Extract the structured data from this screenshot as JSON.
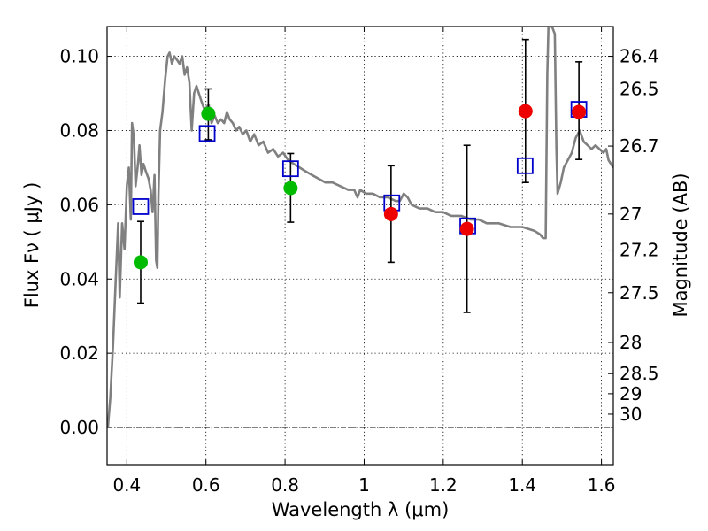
{
  "chart_data": {
    "type": "scatter",
    "xlabel": "Wavelength  λ (μm)",
    "ylabel": "Flux  Fν  ( μJy )",
    "y2label": "Magnitude (AB)",
    "xlim": [
      0.35,
      1.63
    ],
    "ylim": [
      -0.01,
      0.108
    ],
    "grid": true,
    "colors": {
      "green": "#00bb00",
      "red": "#ee0000",
      "model_box": "#0000cc",
      "sed": "#808080",
      "errorbar": "#000000"
    },
    "x_ticks": [
      {
        "value": 0.4,
        "label": "0.4"
      },
      {
        "value": 0.6,
        "label": "0.6"
      },
      {
        "value": 0.8,
        "label": "0.8"
      },
      {
        "value": 1.0,
        "label": "1"
      },
      {
        "value": 1.2,
        "label": "1.2"
      },
      {
        "value": 1.4,
        "label": "1.4"
      },
      {
        "value": 1.6,
        "label": "1.6"
      }
    ],
    "y_ticks": [
      {
        "value": 0.0,
        "label": "0.00"
      },
      {
        "value": 0.02,
        "label": "0.02"
      },
      {
        "value": 0.04,
        "label": "0.04"
      },
      {
        "value": 0.06,
        "label": "0.06"
      },
      {
        "value": 0.08,
        "label": "0.08"
      },
      {
        "value": 0.1,
        "label": "0.10"
      }
    ],
    "mag_ticks": [
      {
        "value": 0.1,
        "label": "26.4"
      },
      {
        "value": 0.0912,
        "label": "26.5"
      },
      {
        "value": 0.0758,
        "label": "26.7"
      },
      {
        "value": 0.0575,
        "label": "27"
      },
      {
        "value": 0.0478,
        "label": "27.2"
      },
      {
        "value": 0.0363,
        "label": "27.5"
      },
      {
        "value": 0.0229,
        "label": "28"
      },
      {
        "value": 0.0145,
        "label": "28.5"
      },
      {
        "value": 0.0091,
        "label": "29"
      },
      {
        "value": 0.0036,
        "label": "30"
      }
    ],
    "observed": [
      {
        "x": 0.435,
        "y": 0.0445,
        "yerr_low": 0.0335,
        "yerr_high": 0.0555,
        "color": "green"
      },
      {
        "x": 0.606,
        "y": 0.0845,
        "yerr_low": 0.0775,
        "yerr_high": 0.0912,
        "color": "green"
      },
      {
        "x": 0.814,
        "y": 0.0645,
        "yerr_low": 0.0553,
        "yerr_high": 0.0738,
        "color": "green"
      },
      {
        "x": 1.068,
        "y": 0.0575,
        "yerr_low": 0.0445,
        "yerr_high": 0.0705,
        "color": "red"
      },
      {
        "x": 1.26,
        "y": 0.0535,
        "yerr_low": 0.031,
        "yerr_high": 0.076,
        "color": "red"
      },
      {
        "x": 1.408,
        "y": 0.0852,
        "yerr_low": 0.066,
        "yerr_high": 0.1045,
        "color": "red"
      },
      {
        "x": 1.543,
        "y": 0.085,
        "yerr_low": 0.0722,
        "yerr_high": 0.0985,
        "color": "red"
      }
    ],
    "model_photometry": [
      {
        "x": 0.435,
        "y": 0.0595
      },
      {
        "x": 0.603,
        "y": 0.0792
      },
      {
        "x": 0.814,
        "y": 0.0697
      },
      {
        "x": 1.07,
        "y": 0.0605
      },
      {
        "x": 1.262,
        "y": 0.0543
      },
      {
        "x": 1.407,
        "y": 0.0705
      },
      {
        "x": 1.543,
        "y": 0.0857
      }
    ],
    "sed_curve": [
      [
        0.352,
        0.0
      ],
      [
        0.358,
        0.008
      ],
      [
        0.365,
        0.022
      ],
      [
        0.372,
        0.04
      ],
      [
        0.378,
        0.055
      ],
      [
        0.382,
        0.035
      ],
      [
        0.388,
        0.055
      ],
      [
        0.394,
        0.048
      ],
      [
        0.4,
        0.065
      ],
      [
        0.405,
        0.07
      ],
      [
        0.41,
        0.056
      ],
      [
        0.413,
        0.082
      ],
      [
        0.418,
        0.078
      ],
      [
        0.422,
        0.065
      ],
      [
        0.428,
        0.071
      ],
      [
        0.432,
        0.076
      ],
      [
        0.437,
        0.068
      ],
      [
        0.442,
        0.071
      ],
      [
        0.448,
        0.069
      ],
      [
        0.455,
        0.067
      ],
      [
        0.46,
        0.064
      ],
      [
        0.465,
        0.058
      ],
      [
        0.47,
        0.068
      ],
      [
        0.474,
        0.045
      ],
      [
        0.477,
        0.043
      ],
      [
        0.48,
        0.063
      ],
      [
        0.484,
        0.08
      ],
      [
        0.49,
        0.085
      ],
      [
        0.497,
        0.094
      ],
      [
        0.503,
        0.1
      ],
      [
        0.508,
        0.101
      ],
      [
        0.514,
        0.098
      ],
      [
        0.52,
        0.1
      ],
      [
        0.527,
        0.099
      ],
      [
        0.533,
        0.098
      ],
      [
        0.54,
        0.1
      ],
      [
        0.546,
        0.095
      ],
      [
        0.552,
        0.097
      ],
      [
        0.558,
        0.093
      ],
      [
        0.564,
        0.08
      ],
      [
        0.57,
        0.09
      ],
      [
        0.576,
        0.092
      ],
      [
        0.582,
        0.09
      ],
      [
        0.588,
        0.088
      ],
      [
        0.595,
        0.086
      ],
      [
        0.6,
        0.086
      ],
      [
        0.607,
        0.087
      ],
      [
        0.614,
        0.082
      ],
      [
        0.622,
        0.084
      ],
      [
        0.63,
        0.082
      ],
      [
        0.638,
        0.083
      ],
      [
        0.646,
        0.082
      ],
      [
        0.653,
        0.085
      ],
      [
        0.66,
        0.083
      ],
      [
        0.668,
        0.082
      ],
      [
        0.676,
        0.08
      ],
      [
        0.684,
        0.081
      ],
      [
        0.693,
        0.079
      ],
      [
        0.702,
        0.08
      ],
      [
        0.712,
        0.077
      ],
      [
        0.722,
        0.079
      ],
      [
        0.733,
        0.076
      ],
      [
        0.745,
        0.077
      ],
      [
        0.757,
        0.074
      ],
      [
        0.77,
        0.075
      ],
      [
        0.782,
        0.073
      ],
      [
        0.795,
        0.074
      ],
      [
        0.808,
        0.072
      ],
      [
        0.822,
        0.071
      ],
      [
        0.837,
        0.07
      ],
      [
        0.852,
        0.069
      ],
      [
        0.868,
        0.068
      ],
      [
        0.885,
        0.067
      ],
      [
        0.902,
        0.066
      ],
      [
        0.92,
        0.066
      ],
      [
        0.94,
        0.065
      ],
      [
        0.96,
        0.064
      ],
      [
        0.975,
        0.064
      ],
      [
        0.983,
        0.062
      ],
      [
        0.99,
        0.064
      ],
      [
        1.005,
        0.063
      ],
      [
        1.022,
        0.063
      ],
      [
        1.04,
        0.062
      ],
      [
        1.06,
        0.062
      ],
      [
        1.08,
        0.061
      ],
      [
        1.09,
        0.061
      ],
      [
        1.1,
        0.063
      ],
      [
        1.11,
        0.062
      ],
      [
        1.12,
        0.06
      ],
      [
        1.14,
        0.059
      ],
      [
        1.16,
        0.059
      ],
      [
        1.18,
        0.058
      ],
      [
        1.2,
        0.058
      ],
      [
        1.22,
        0.057
      ],
      [
        1.245,
        0.057
      ],
      [
        1.27,
        0.056
      ],
      [
        1.29,
        0.056
      ],
      [
        1.31,
        0.055
      ],
      [
        1.34,
        0.055
      ],
      [
        1.37,
        0.054
      ],
      [
        1.4,
        0.054
      ],
      [
        1.43,
        0.053
      ],
      [
        1.445,
        0.052
      ],
      [
        1.452,
        0.051
      ],
      [
        1.459,
        0.051
      ],
      [
        1.463,
        0.095
      ],
      [
        1.466,
        0.108
      ],
      [
        1.475,
        0.108
      ],
      [
        1.482,
        0.106
      ],
      [
        1.486,
        0.075
      ],
      [
        1.489,
        0.063
      ],
      [
        1.497,
        0.066
      ],
      [
        1.505,
        0.07
      ],
      [
        1.515,
        0.072
      ],
      [
        1.525,
        0.074
      ],
      [
        1.535,
        0.078
      ],
      [
        1.545,
        0.08
      ],
      [
        1.555,
        0.077
      ],
      [
        1.565,
        0.076
      ],
      [
        1.575,
        0.075
      ],
      [
        1.585,
        0.076
      ],
      [
        1.595,
        0.075
      ],
      [
        1.605,
        0.074
      ],
      [
        1.612,
        0.075
      ],
      [
        1.618,
        0.072
      ],
      [
        1.624,
        0.071
      ],
      [
        1.63,
        0.07
      ]
    ]
  }
}
